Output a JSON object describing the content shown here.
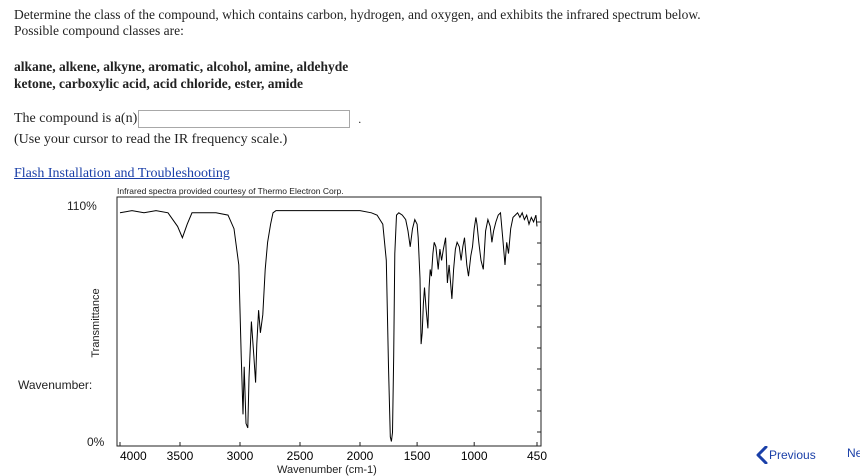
{
  "question": {
    "line1": "Determine the class of the compound, which contains carbon, hydrogen, and oxygen, and exhibits the infrared spectrum below.",
    "line2": "Possible compound classes are:"
  },
  "classes": {
    "line1": "alkane, alkene, alkyne, aromatic, alcohol, amine, aldehyde",
    "line2": "ketone, carboxylic acid, acid chloride, ester, amide"
  },
  "answer": {
    "prompt": "The compound is a(n)",
    "value": "",
    "suffix": "."
  },
  "hint": "(Use your cursor to read the IR frequency scale.)",
  "flash_link": "Flash Installation and Troubleshooting",
  "courtesy": "Infrared spectra provided courtesy of Thermo Electron Corp.",
  "spectrum_panel": {
    "y_top_label": "110%",
    "y_bottom_label": "0%",
    "y_axis_title": "Transmittance",
    "wavenumber_readout_label": "Wavenumber:",
    "x_axis_title": "Wavenumber (cm-1)"
  },
  "nav": {
    "previous_label": "Previous",
    "next_label": "Ne"
  },
  "colors": {
    "link": "#1a3fa8",
    "trace": "#000000",
    "input_border": "#a8a8a8"
  },
  "chart_data": {
    "type": "line",
    "x_axis": {
      "ticks": [
        4000,
        3500,
        3000,
        2500,
        2000,
        1500,
        1000,
        450
      ],
      "range": [
        4000,
        450
      ],
      "title": "Wavenumber (cm-1)"
    },
    "y_axis": {
      "range": [
        0,
        110
      ],
      "unit": "%",
      "title": "Transmittance"
    },
    "grid": false,
    "series": [
      {
        "x": [
          4000,
          3900,
          3800,
          3700,
          3600,
          3520,
          3480,
          3440,
          3400,
          3300,
          3200,
          3100,
          3050,
          3010,
          2990,
          2975,
          2965,
          2950,
          2935,
          2925,
          2905,
          2885,
          2870,
          2860,
          2845,
          2830,
          2810,
          2790,
          2770,
          2745,
          2725,
          2700,
          2650,
          2600,
          2500,
          2400,
          2300,
          2200,
          2100,
          2000,
          1900,
          1850,
          1800,
          1770,
          1750,
          1735,
          1725,
          1715,
          1705,
          1695,
          1680,
          1660,
          1630,
          1600,
          1580,
          1560,
          1540,
          1520,
          1500,
          1490,
          1475,
          1465,
          1455,
          1445,
          1435,
          1420,
          1405,
          1395,
          1385,
          1375,
          1362,
          1350,
          1335,
          1315,
          1300,
          1285,
          1270,
          1250,
          1235,
          1220,
          1195,
          1180,
          1165,
          1150,
          1130,
          1115,
          1100,
          1085,
          1065,
          1050,
          1030,
          1015,
          1000,
          985,
          975,
          960,
          940,
          920,
          900,
          880,
          860,
          845,
          830,
          810,
          790,
          770,
          750,
          730,
          715,
          700,
          680,
          660,
          640,
          620,
          600,
          580,
          560,
          540,
          520,
          500,
          480,
          460,
          450
        ],
        "y": [
          103,
          104,
          103,
          104,
          103,
          97,
          92,
          98,
          103,
          103,
          103,
          102,
          96,
          80,
          40,
          14,
          35,
          10,
          8,
          30,
          55,
          40,
          28,
          45,
          60,
          50,
          58,
          78,
          90,
          98,
          103,
          104,
          104,
          104,
          104,
          104,
          104,
          104,
          104,
          104,
          103,
          102,
          98,
          82,
          35,
          4,
          2,
          6,
          40,
          85,
          102,
          103,
          102,
          100,
          95,
          88,
          96,
          100,
          98,
          92,
          74,
          45,
          50,
          63,
          70,
          60,
          52,
          70,
          78,
          75,
          85,
          90,
          88,
          78,
          87,
          82,
          87,
          92,
          72,
          80,
          65,
          78,
          87,
          90,
          88,
          82,
          88,
          92,
          80,
          75,
          84,
          88,
          96,
          101,
          98,
          90,
          82,
          78,
          95,
          100,
          97,
          90,
          95,
          99,
          102,
          103,
          92,
          80,
          90,
          85,
          96,
          101,
          102,
          103,
          101,
          103,
          100,
          102,
          98,
          101,
          99,
          102,
          97
        ]
      }
    ]
  }
}
